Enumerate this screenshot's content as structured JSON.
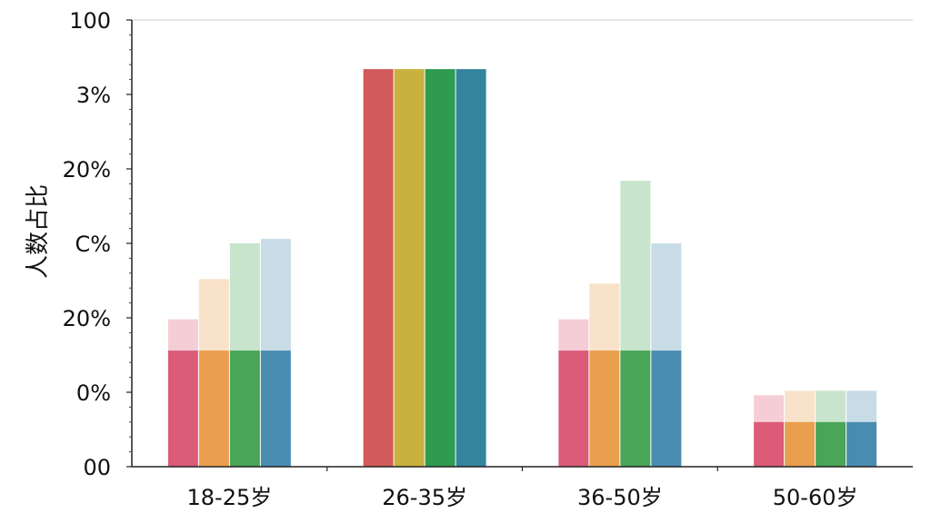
{
  "chart_data": {
    "type": "bar",
    "title": "",
    "xlabel": "",
    "ylabel": "人数占比",
    "categories": [
      "18-25岁",
      "26-35岁",
      "36-50岁",
      "50-60岁"
    ],
    "y_tick_labels": [
      "00",
      "0%",
      "20%",
      "C%",
      "20%",
      "3%",
      "100"
    ],
    "ylim": [
      0,
      100
    ],
    "grid": false,
    "legend": "none",
    "series": [
      {
        "color": "#d84d6e",
        "values": [
          26,
          89,
          26,
          10
        ],
        "faded_tops": [
          33,
          null,
          33,
          16
        ]
      },
      {
        "color": "#e8973f",
        "values": [
          26,
          89,
          26,
          10
        ],
        "faded_tops": [
          42,
          null,
          41,
          17
        ]
      },
      {
        "color": "#3a9d49",
        "values": [
          26,
          89,
          26,
          10
        ],
        "faded_tops": [
          50,
          null,
          64,
          17
        ]
      },
      {
        "color": "#3a82a8",
        "values": [
          26,
          89,
          26,
          10
        ],
        "faded_tops": [
          51,
          null,
          50,
          17
        ]
      }
    ],
    "solid_colors_26_35": [
      "#d35a5a",
      "#c8b13e",
      "#2e9b4f",
      "#34849e"
    ]
  }
}
